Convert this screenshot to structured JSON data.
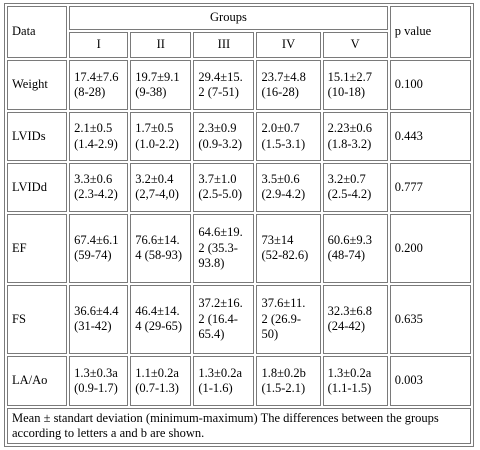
{
  "table": {
    "header": {
      "data_label": "Data",
      "groups_label": "Groups",
      "p_label": "p value",
      "groups": [
        "I",
        "II",
        "III",
        "IV",
        "V"
      ]
    },
    "rows": [
      {
        "label": "Weight",
        "cells": [
          [
            "17.4±7.6",
            "(8-28)"
          ],
          [
            "19.7±9.1",
            "(9-38)"
          ],
          [
            "29.4±15.",
            "2 (7-51)"
          ],
          [
            "23.7±4.8",
            "(16-28)"
          ],
          [
            "15.1±2.7",
            "(10-18)"
          ]
        ],
        "p": "0.100"
      },
      {
        "label": "LVIDs",
        "cells": [
          [
            "2.1±0.5",
            "(1.4-2.9)"
          ],
          [
            "1.7±0.5",
            "(1.0-2.2)"
          ],
          [
            "2.3±0.9",
            "(0.9-3.2)"
          ],
          [
            "2.0±0.7",
            "(1.5-3.1)"
          ],
          [
            "2.23±0.6",
            "(1.8-3.2)"
          ]
        ],
        "p": "0.443"
      },
      {
        "label": "LVIDd",
        "cells": [
          [
            "3.3±0.6",
            "(2.3-4.2)"
          ],
          [
            "3.2±0.4",
            "(2,7-4,0)"
          ],
          [
            "3.7±1.0",
            "(2.5-5.0)"
          ],
          [
            "3.5±0.6",
            "(2.9-4.2)"
          ],
          [
            "3.2±0.7",
            "(2.5-4.2)"
          ]
        ],
        "p": "0.777"
      },
      {
        "label": "EF",
        "cells": [
          [
            "67.4±6.1",
            "(59-74)"
          ],
          [
            "76.6±14.",
            "4 (58-93)"
          ],
          [
            "64.6±19.",
            "2 (35.3-",
            "93.8)"
          ],
          [
            "73±14",
            "(52-82.6)"
          ],
          [
            "60.6±9.3",
            "(48-74)"
          ]
        ],
        "p": "0.200"
      },
      {
        "label": "FS",
        "cells": [
          [
            "36.6±4.4",
            "(31-42)"
          ],
          [
            "46.4±14.",
            "4 (29-65)"
          ],
          [
            "37.2±16.",
            "2 (16.4-",
            "65.4)"
          ],
          [
            "37.6±11.",
            "2 (26.9-",
            "50)"
          ],
          [
            "32.3±6.8",
            "(24-42)"
          ]
        ],
        "p": "0.635"
      },
      {
        "label": "LA/Ao",
        "cells": [
          [
            "1.3±0.3a",
            "(0.9-1.7)"
          ],
          [
            "1.1±0.2a",
            "(0.7-1.3)"
          ],
          [
            "1.3±0.2a",
            "(1-1.6)"
          ],
          [
            "1.8±0.2b",
            "(1.5-2.1)"
          ],
          [
            "1.3±0.2a",
            "(1.1-1.5)"
          ]
        ],
        "p": "0.003"
      }
    ],
    "footnote": "Mean ± standart deviation (minimum-maximum) The differences between the groups according to letters a and b are shown."
  }
}
